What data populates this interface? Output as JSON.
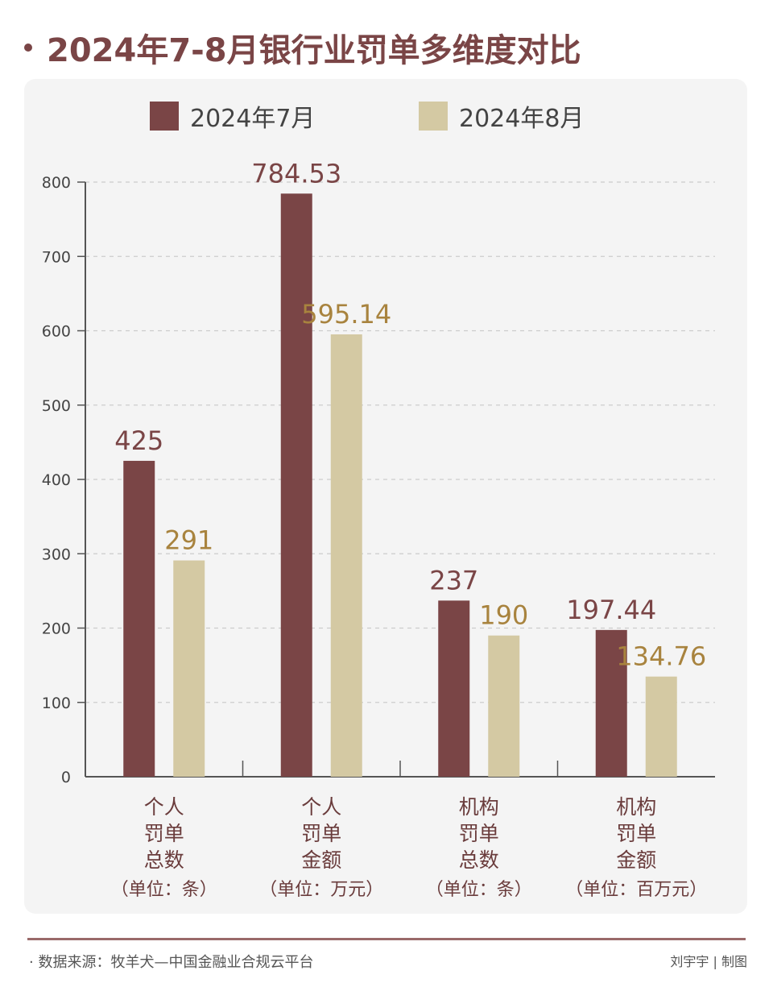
{
  "title": "2024年7-8月银行业罚单多维度对比",
  "colors": {
    "july": "#7a4546",
    "august": "#d4c9a3",
    "august_label": "#a8833e",
    "july_label": "#7a4546"
  },
  "chart_data": {
    "type": "bar",
    "title": "2024年7-8月银行业罚单多维度对比",
    "categories": [
      {
        "lines": [
          "个人",
          "罚单",
          "总数"
        ],
        "unit": "（单位：条）"
      },
      {
        "lines": [
          "个人",
          "罚单",
          "金额"
        ],
        "unit": "（单位：万元）"
      },
      {
        "lines": [
          "机构",
          "罚单",
          "总数"
        ],
        "unit": "（单位：条）"
      },
      {
        "lines": [
          "机构",
          "罚单",
          "金额"
        ],
        "unit": "（单位：百万元）"
      }
    ],
    "series": [
      {
        "name": "2024年7月",
        "values": [
          425,
          784.53,
          237,
          197.44
        ],
        "labels": [
          "425",
          "784.53",
          "237",
          "197.44"
        ]
      },
      {
        "name": "2024年8月",
        "values": [
          291,
          595.14,
          190,
          134.76
        ],
        "labels": [
          "291",
          "595.14",
          "190",
          "134.76"
        ]
      }
    ],
    "ylim": [
      0,
      800
    ],
    "yticks": [
      "0",
      "100",
      "200",
      "300",
      "400",
      "500",
      "600",
      "700",
      "800"
    ],
    "grid": true,
    "legend": "top"
  },
  "footer": {
    "source": "· 数据来源：牧羊犬—中国金融业合规云平台",
    "credit": "刘宇宇 | 制图"
  }
}
